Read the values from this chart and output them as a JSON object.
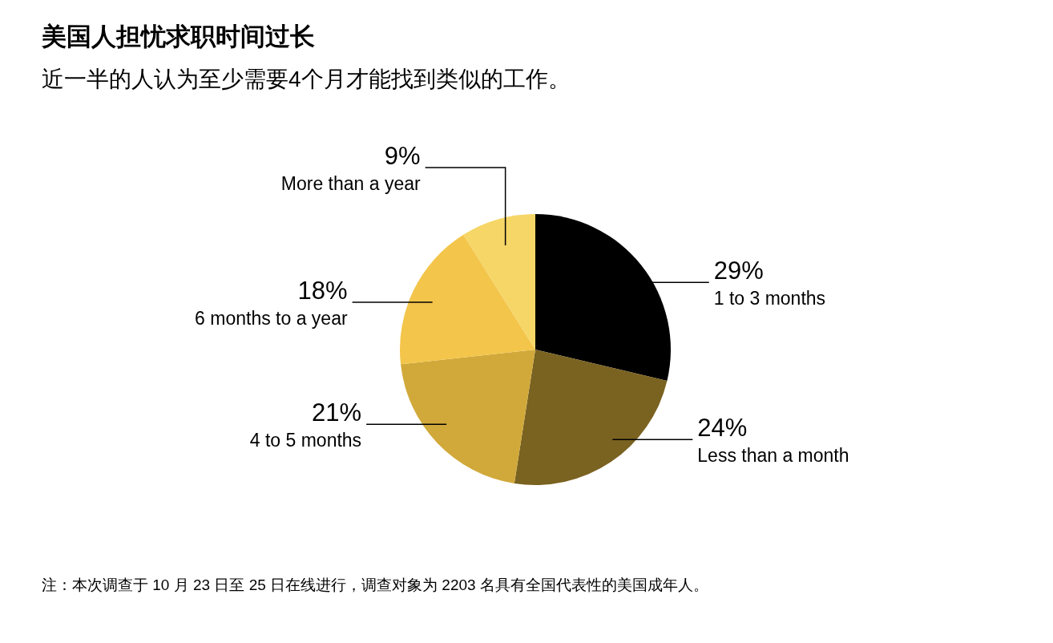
{
  "chart_data": {
    "type": "pie",
    "title": "美国人担忧求职时间过长",
    "subtitle": "近一半的人认为至少需要4个月才能找到类似的工作。",
    "categories": [
      "1 to 3 months",
      "Less than a month",
      "4 to 5 months",
      "6 months to a year",
      "More than a year"
    ],
    "values": [
      29,
      24,
      21,
      18,
      9
    ],
    "colors": [
      "#000000",
      "#7a6220",
      "#d1a93a",
      "#f3c54a",
      "#f5d666"
    ],
    "value_labels": [
      "29%",
      "24%",
      "21%",
      "18%",
      "9%"
    ],
    "annotations": [
      "注：本次调查于 10 月 23 日至 25 日在线进行，调查对象为 2203 名具有全国代表性的美国成年人。"
    ]
  }
}
